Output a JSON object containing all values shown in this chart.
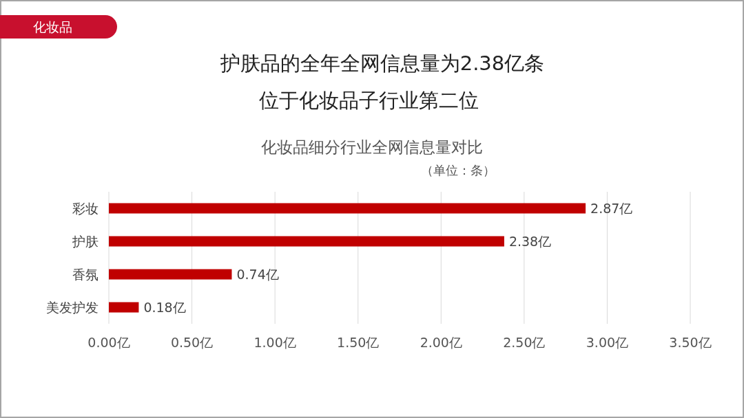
{
  "chart_data": {
    "type": "bar",
    "orientation": "horizontal",
    "title": "护肤品的全年全网信息量为2.38亿条",
    "subtitle": "位于化妆品子行业第二位",
    "annotations": [
      "化妆品",
      "化妆品细分行业全网信息量对比",
      "（单位：条）"
    ],
    "categories": [
      "彩妆",
      "护肤",
      "香氛",
      "美发护发"
    ],
    "values": [
      2.87,
      2.38,
      0.74,
      0.18
    ],
    "value_labels": [
      "2.87亿",
      "2.38亿",
      "0.74亿",
      "0.18亿"
    ],
    "color": "#c00000",
    "grid": "x",
    "xlim": [
      0,
      3.5
    ],
    "xticks": [
      {
        "value": 0,
        "label": "0.00亿"
      },
      {
        "value": 0.5,
        "label": "0.50亿"
      },
      {
        "value": 1,
        "label": "1.00亿"
      },
      {
        "value": 1.5,
        "label": "1.50亿"
      },
      {
        "value": 2,
        "label": "2.00亿"
      },
      {
        "value": 2.5,
        "label": "2.50亿"
      },
      {
        "value": 3,
        "label": "3.00亿"
      },
      {
        "value": 3.5,
        "label": "3.50亿"
      }
    ]
  }
}
